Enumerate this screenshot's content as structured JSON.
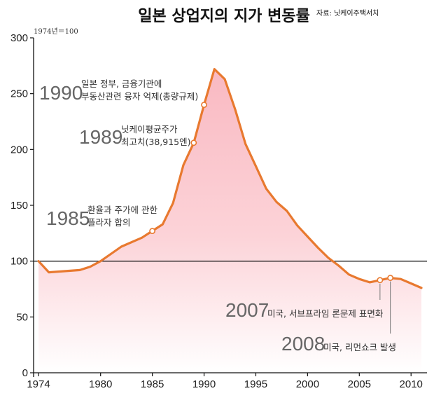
{
  "chart_data": {
    "type": "area",
    "title": "일본 상업지의 지가 변동률",
    "source": "자료: 닛케이주택서치",
    "unit_note": "1974년＝100",
    "xlim": [
      1974,
      2011
    ],
    "ylim": [
      0,
      300
    ],
    "x_ticks": [
      "1974",
      "1980",
      "1985",
      "1990",
      "1995",
      "2000",
      "2005",
      "2010"
    ],
    "y_ticks": [
      "0",
      "50",
      "100",
      "150",
      "200",
      "250",
      "300"
    ],
    "reference_line": 100,
    "x": [
      1974,
      1975,
      1978,
      1979,
      1980,
      1982,
      1984,
      1985,
      1986,
      1987,
      1988,
      1989,
      1990,
      1991,
      1992,
      1993,
      1994,
      1995,
      1996,
      1997,
      1998,
      1999,
      2000,
      2001,
      2002,
      2003,
      2004,
      2005,
      2006,
      2007,
      2008,
      2009,
      2010,
      2011
    ],
    "values": [
      100,
      90,
      92,
      95,
      100,
      113,
      121,
      127,
      133,
      152,
      186,
      206,
      240,
      272,
      263,
      236,
      205,
      185,
      165,
      153,
      145,
      132,
      122,
      112,
      103,
      96,
      88,
      84,
      81,
      83,
      85,
      84,
      80,
      76
    ],
    "annotations": [
      {
        "year": "1990",
        "value": 240,
        "text": [
          "일본 정부, 금융기관에",
          "부동산관련 융자 억제(총량규제)"
        ]
      },
      {
        "year": "1989",
        "value": 206,
        "text": [
          "닛케이평균주가",
          "최고치(38,915엔)"
        ]
      },
      {
        "year": "1985",
        "value": 127,
        "text": [
          "환율과 주가에 관한",
          "플라자 합의"
        ]
      },
      {
        "year": "2007",
        "value": 83,
        "text": [
          "미국, 서브프라임 론문제 표면화"
        ]
      },
      {
        "year": "2008",
        "value": 85,
        "text": [
          "미국, 리먼쇼크 발생"
        ]
      }
    ]
  },
  "colors": {
    "line": "#e8792f",
    "fill_top": "#f9b9c2",
    "fill_bottom": "#ffffff",
    "reference": "#1a1a1a",
    "marker_fill": "#ffffff"
  }
}
